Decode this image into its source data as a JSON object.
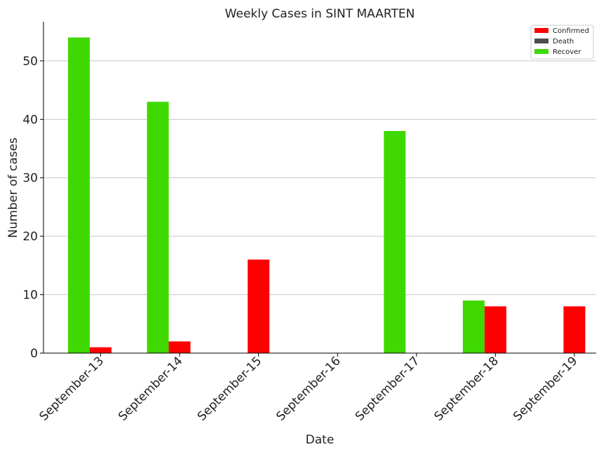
{
  "chart_data": {
    "type": "bar",
    "title": "Weekly Cases in SINT MAARTEN",
    "xlabel": "Date",
    "ylabel": "Number of cases",
    "categories": [
      "September-13",
      "September-14",
      "September-15",
      "September-16",
      "September-17",
      "September-18",
      "September-19"
    ],
    "series": [
      {
        "name": "Confirmed",
        "color": "#ff0000",
        "values": [
          1,
          2,
          16,
          0,
          0,
          8,
          8
        ]
      },
      {
        "name": "Death",
        "color": "#4d4d4d",
        "values": [
          0,
          0,
          0,
          0,
          0,
          0,
          0
        ]
      },
      {
        "name": "Recover",
        "color": "#3fd800",
        "values": [
          54,
          43,
          0,
          0,
          38,
          9,
          0
        ]
      }
    ],
    "ylim": [
      0,
      56.7
    ],
    "yticks": [
      0,
      10,
      20,
      30,
      40,
      50
    ],
    "grid": "horizontal",
    "legend": "top-right"
  }
}
